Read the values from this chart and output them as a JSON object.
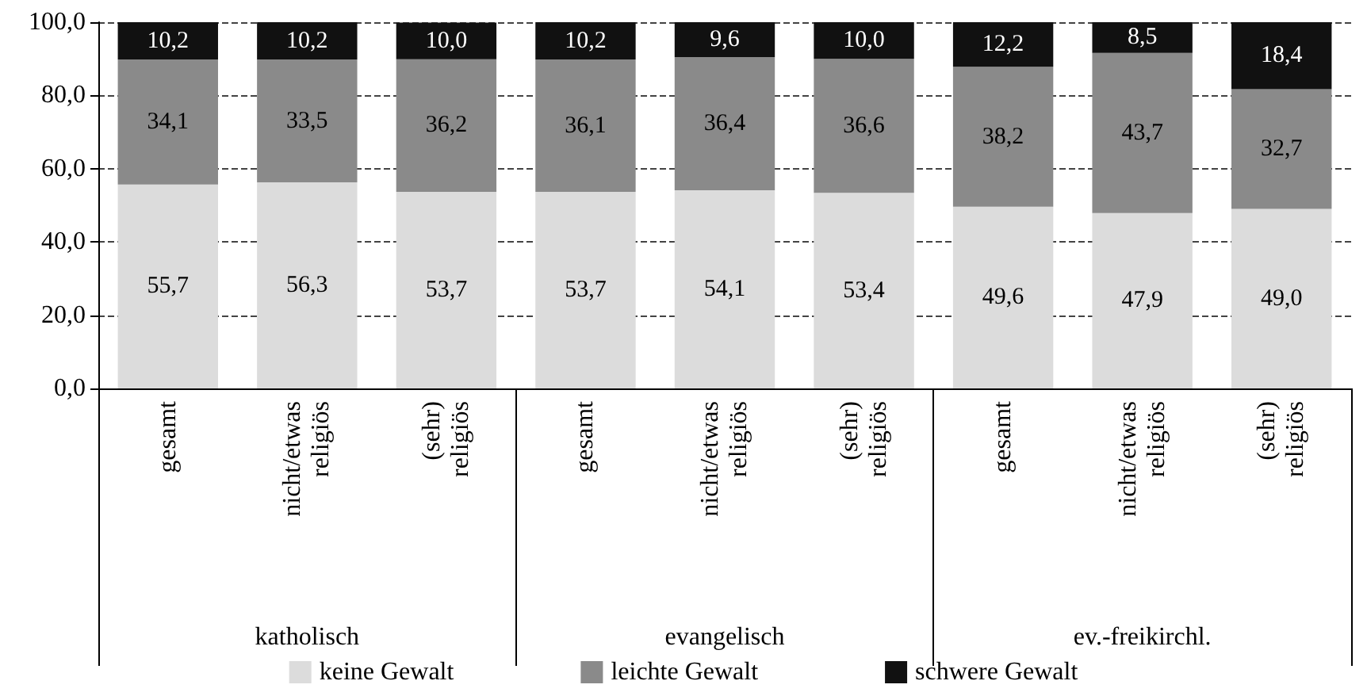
{
  "chart_data": {
    "type": "bar",
    "stacked": true,
    "categories": [
      "gesamt",
      "nicht/etwas religiös",
      "(sehr) religiös",
      "gesamt",
      "nicht/etwas religiös",
      "(sehr) religiös",
      "gesamt",
      "nicht/etwas religiös",
      "(sehr) religiös"
    ],
    "annotations": [
      "katholisch",
      "evangelisch",
      "ev.-freikirchl."
    ],
    "series": [
      {
        "name": "keine Gewalt",
        "color": "#dcdcdc",
        "values": [
          55.7,
          56.3,
          53.7,
          53.7,
          54.1,
          53.4,
          49.6,
          47.9,
          49.0
        ],
        "value_labels": [
          "55,7",
          "56,3",
          "53,7",
          "53,7",
          "54,1",
          "53,4",
          "49,6",
          "47,9",
          "49,0"
        ]
      },
      {
        "name": "leichte Gewalt",
        "color": "#8a8a8a",
        "values": [
          34.1,
          33.5,
          36.2,
          36.1,
          36.4,
          36.6,
          38.2,
          43.7,
          32.7
        ],
        "value_labels": [
          "34,1",
          "33,5",
          "36,2",
          "36,1",
          "36,4",
          "36,6",
          "38,2",
          "43,7",
          "32,7"
        ]
      },
      {
        "name": "schwere Gewalt",
        "color": "#111111",
        "values": [
          10.2,
          10.2,
          10.0,
          10.2,
          9.6,
          10.0,
          12.2,
          8.5,
          18.4
        ],
        "value_labels": [
          "10,2",
          "10,2",
          "10,0",
          "10,2",
          "9,6",
          "10,0",
          "12,2",
          "8,5",
          "18,4"
        ]
      }
    ],
    "ylim": [
      0,
      100
    ],
    "yticks": [
      {
        "value": 0,
        "label": "0,0"
      },
      {
        "value": 20,
        "label": "20,0"
      },
      {
        "value": 40,
        "label": "40,0"
      },
      {
        "value": 60,
        "label": "60,0"
      },
      {
        "value": 80,
        "label": "80,0"
      },
      {
        "value": 100,
        "label": "100,0"
      }
    ],
    "grid": "y",
    "legend": "bottom"
  }
}
